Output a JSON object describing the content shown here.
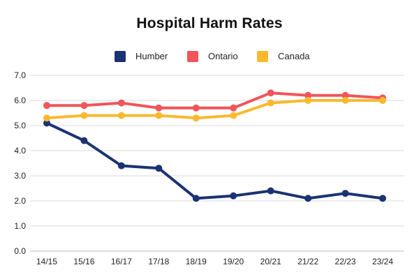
{
  "chart_data": {
    "type": "line",
    "title": "Hospital Harm Rates",
    "xlabel": "",
    "ylabel": "",
    "categories": [
      "14/15",
      "15/16",
      "16/17",
      "17/18",
      "18/19",
      "19/20",
      "20/21",
      "21/22",
      "22/23",
      "23/24"
    ],
    "ylim": [
      0,
      7
    ],
    "yticks": [
      "0.0",
      "1.0",
      "2.0",
      "3.0",
      "4.0",
      "5.0",
      "6.0",
      "7.0"
    ],
    "grid": true,
    "legend_position": "top-center",
    "series": [
      {
        "name": "Humber",
        "color": "#1b3372",
        "values": [
          5.1,
          4.4,
          3.4,
          3.3,
          2.1,
          2.2,
          2.4,
          2.1,
          2.3,
          2.1
        ]
      },
      {
        "name": "Ontario",
        "color": "#f0555a",
        "values": [
          5.8,
          5.8,
          5.9,
          5.7,
          5.7,
          5.7,
          6.3,
          6.2,
          6.2,
          6.1
        ]
      },
      {
        "name": "Canada",
        "color": "#fbb92f",
        "values": [
          5.3,
          5.4,
          5.4,
          5.4,
          5.3,
          5.4,
          5.9,
          6.0,
          6.0,
          6.0
        ]
      }
    ]
  }
}
